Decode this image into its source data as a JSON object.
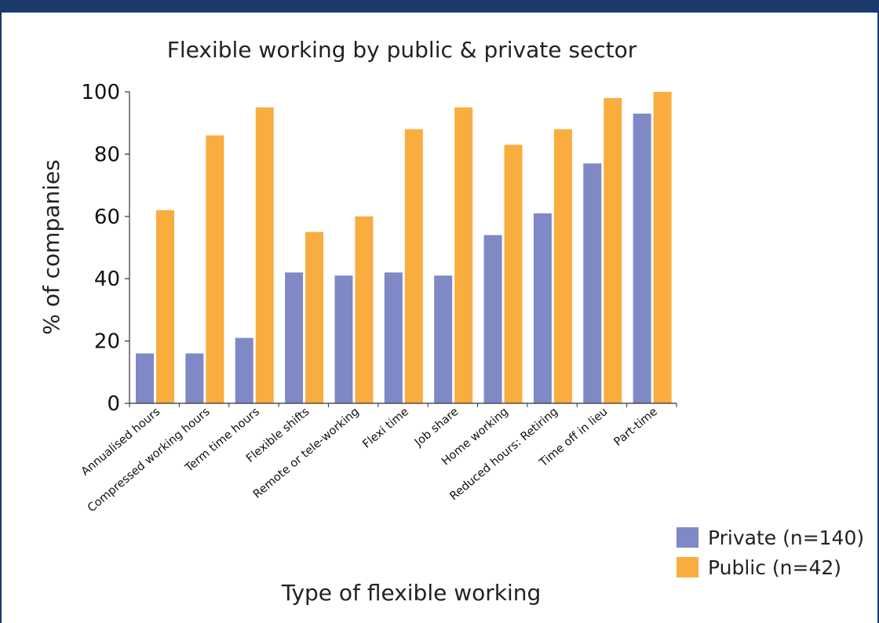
{
  "chart_data": {
    "type": "bar",
    "title": "Flexible working by public & private sector",
    "xlabel": "Type of flexible working",
    "ylabel": "% of companies",
    "ylim": [
      0,
      100
    ],
    "yticks": [
      0,
      20,
      40,
      60,
      80,
      100
    ],
    "grid": false,
    "legend_position": "bottom-right",
    "categories": [
      "Annualised hours",
      "Compressed working hours",
      "Term time hours",
      "Flexible shifts",
      "Remote or tele-working",
      "Flexi time",
      "Job share",
      "Home working",
      "Reduced hours: Retiring",
      "Time off in lieu",
      "Part-time"
    ],
    "series": [
      {
        "name": "Private (n=140)",
        "color": "#7f89c6",
        "values": [
          16,
          16,
          21,
          42,
          41,
          42,
          41,
          54,
          61,
          77,
          93
        ]
      },
      {
        "name": "Public (n=42)",
        "color": "#f9ad3e",
        "values": [
          62,
          86,
          95,
          55,
          60,
          88,
          95,
          83,
          88,
          98,
          100
        ]
      }
    ]
  }
}
